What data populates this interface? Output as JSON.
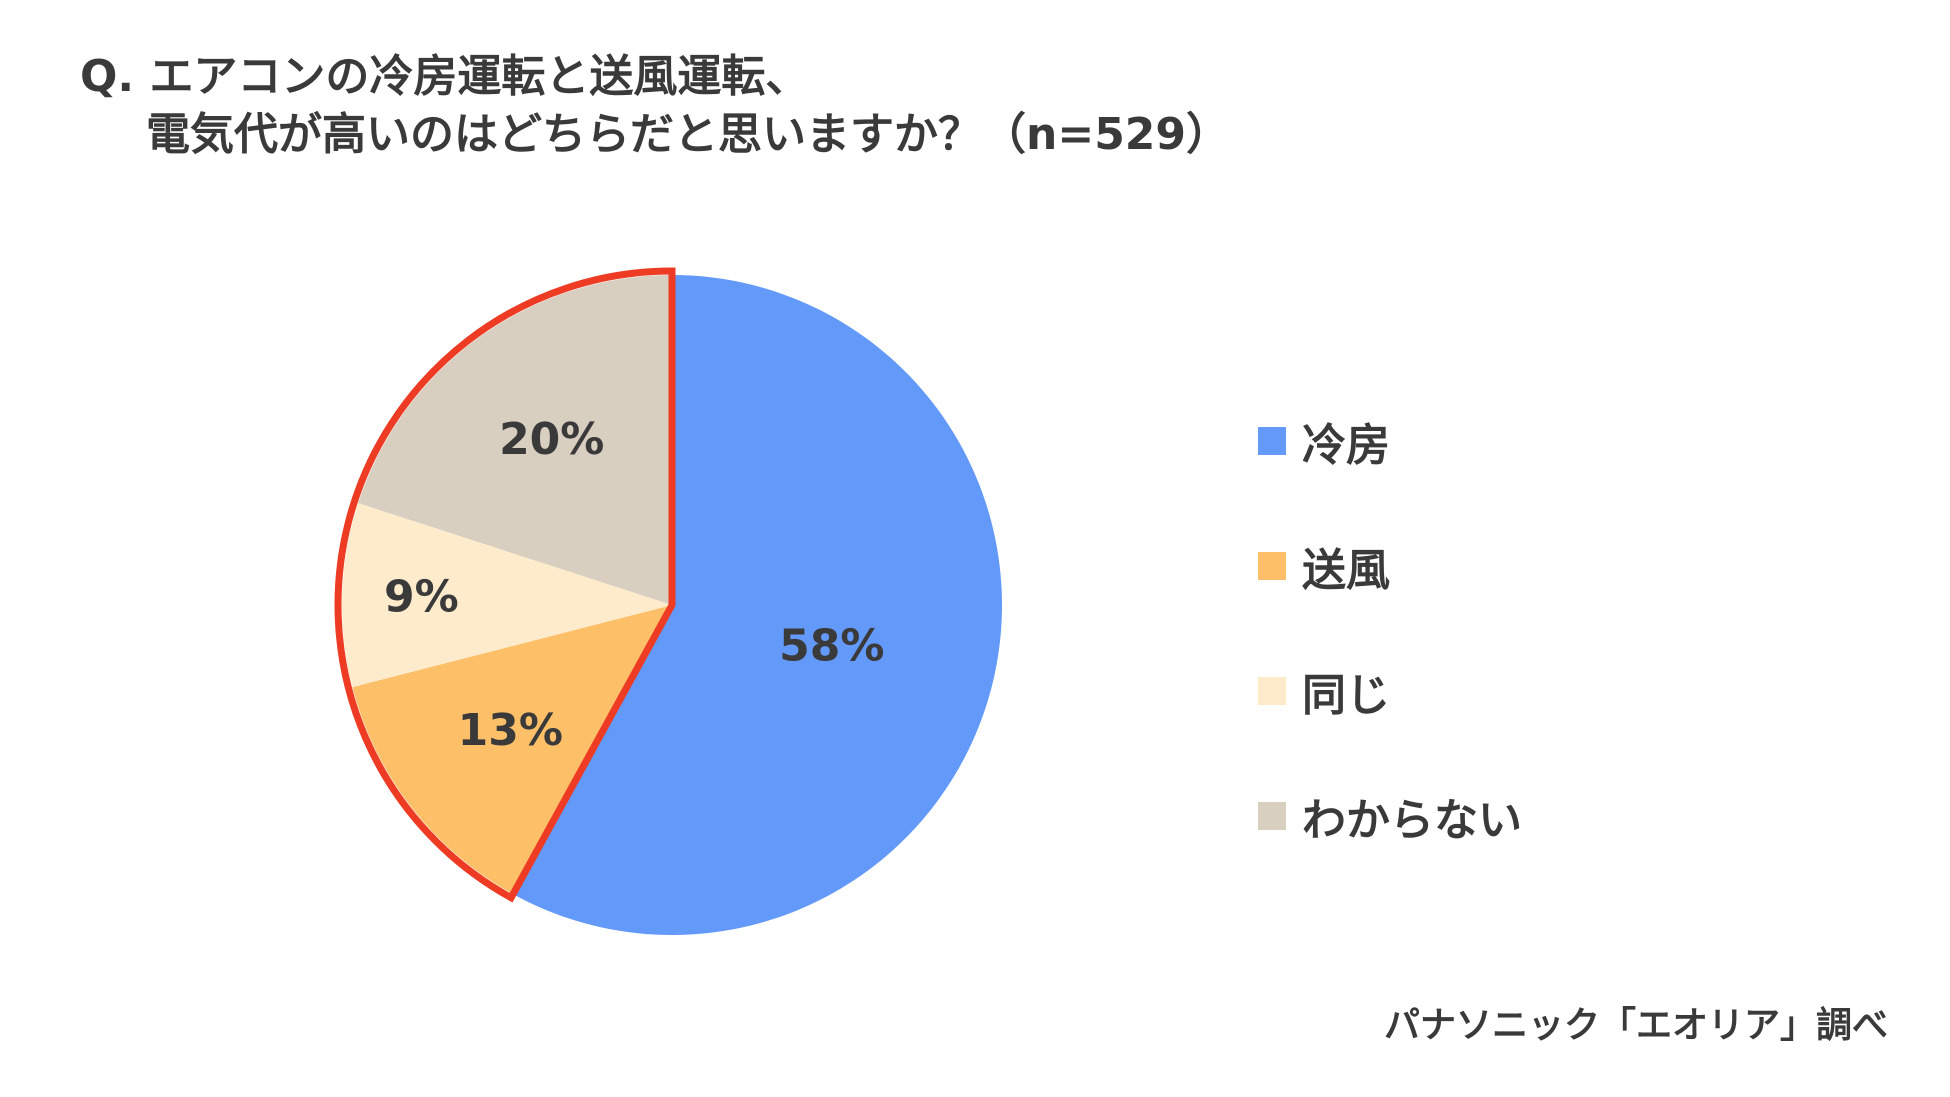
{
  "header": {
    "title_line1": "Q. エアコンの冷房運転と送風運転、",
    "title_line2": "電気代が高いのはどちらだと思いますか？（n=529）"
  },
  "chart_data": {
    "type": "pie",
    "title": "Q. エアコンの冷房運転と送風運転、電気代が高いのはどちらだと思いますか？（n=529）",
    "slices": [
      {
        "label": "冷房",
        "value": 58,
        "display": "58%",
        "color": "#6399f8"
      },
      {
        "label": "送風",
        "value": 13,
        "display": "13%",
        "color": "#fdc068"
      },
      {
        "label": "同じ",
        "value": 9,
        "display": "9%",
        "color": "#fdebcc"
      },
      {
        "label": "わからない",
        "value": 20,
        "display": "20%",
        "color": "#d9cfc0"
      }
    ],
    "highlight": {
      "labels": [
        "送風",
        "同じ",
        "わからない"
      ],
      "color": "#ee3b24"
    },
    "legend_position": "right"
  },
  "source": "パナソニック「エオリア」調べ"
}
